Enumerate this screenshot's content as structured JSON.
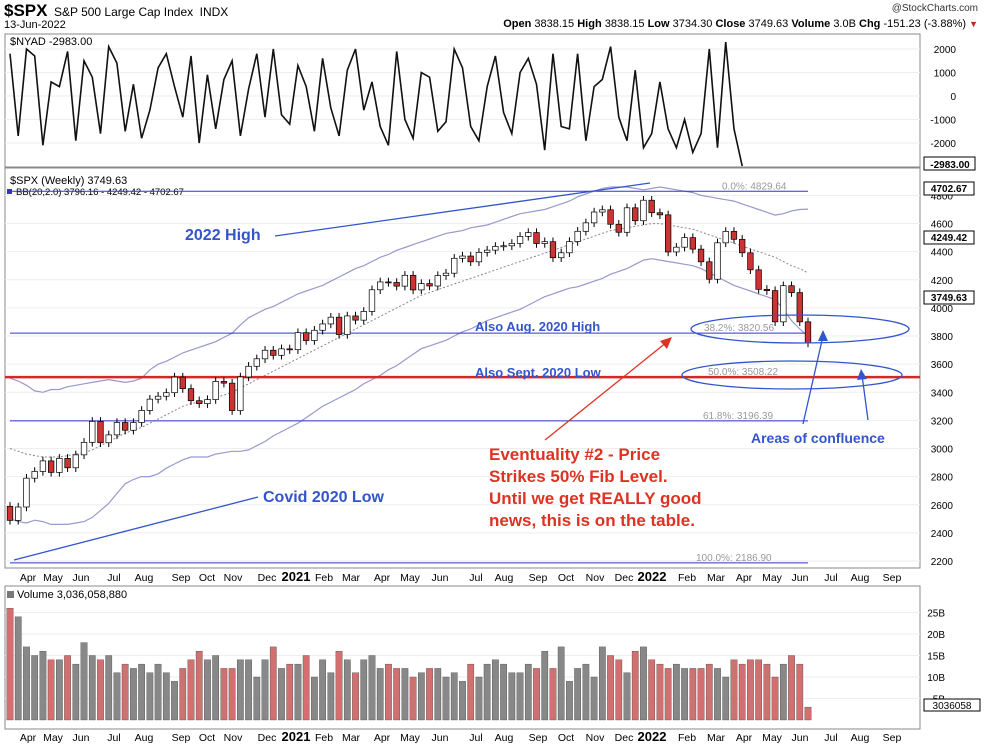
{
  "header": {
    "symbol": "$SPX",
    "name": "S&P 500 Large Cap Index",
    "exchange": "INDX",
    "date": "13-Jun-2022",
    "watermark": "@StockCharts.com",
    "quote": {
      "open_label": "Open",
      "open": "3838.15",
      "high_label": "High",
      "high": "3838.15",
      "low_label": "Low",
      "low": "3734.30",
      "close_label": "Close",
      "close": "3749.63",
      "volume_label": "Volume",
      "volume": "3.0B",
      "chg_label": "Chg",
      "chg": "-151.23 (-3.88%)"
    }
  },
  "colors": {
    "up": "#ffffff",
    "down": "#cc3333",
    "candle_outline": "#000000",
    "bb": "#9999cc",
    "sma": "#888888",
    "fib": "#3333cc",
    "red_line": "#d62728",
    "annotation_blue": "#3355cc",
    "annotation_red": "#dd3322",
    "vol_up": "#888888",
    "vol_down": "#d07070"
  },
  "chart_data": [
    {
      "type": "line",
      "panel": "indicator",
      "legend": "$NYAD -2983.00",
      "last_value_label": "-2983.00",
      "y_ticks": [
        2000,
        1000,
        0,
        -1000,
        -2000
      ],
      "ylim": [
        -3000,
        2500
      ],
      "values": [
        1800,
        -1700,
        2000,
        1700,
        -2100,
        600,
        400,
        1900,
        -1900,
        1500,
        800,
        -1600,
        2100,
        1400,
        -1500,
        500,
        -1800,
        -600,
        1200,
        1800,
        400,
        -900,
        1700,
        -2000,
        900,
        -1400,
        700,
        1500,
        -1700,
        300,
        1800,
        -900,
        2000,
        -800,
        -1200,
        1300,
        400,
        -1500,
        1600,
        -500,
        -1700,
        1100,
        2000,
        -600,
        600,
        -1300,
        -2100,
        1900,
        -1000,
        -1800,
        1000,
        800,
        -1500,
        -1100,
        2000,
        1200,
        -1300,
        -1900,
        400,
        1700,
        -700,
        -1600,
        1000,
        1600,
        500,
        -2300,
        1800,
        -1300,
        -1400,
        1800,
        -1900,
        400,
        700,
        2100,
        -900,
        -1900,
        1100,
        -2200,
        -1600,
        600,
        -1400,
        -2200,
        -1000,
        -2400,
        -1600,
        2000,
        -2200,
        2300,
        -1400,
        -2983
      ]
    },
    {
      "type": "candlestick",
      "panel": "price",
      "legend": "$SPX (Weekly) 3749.63",
      "legend_bb": "BB(20,2.0) 3796.16 - 4249.42 - 4702.67",
      "price_labels": [
        "4702.67",
        "4249.42",
        "3749.63"
      ],
      "y_ticks": [
        4800,
        4600,
        4400,
        4200,
        4000,
        3800,
        3600,
        3400,
        3200,
        3000,
        2800,
        2600,
        2400,
        2200
      ],
      "ylim": [
        2160,
        4870
      ],
      "fib_levels": [
        {
          "label": "0.0%: 4829.64",
          "value": 4829.64
        },
        {
          "label": "38.2%: 3820.56",
          "value": 3820.56
        },
        {
          "label": "50.0%: 3508.22",
          "value": 3508.22
        },
        {
          "label": "61.8%: 3196.39",
          "value": 3196.39
        },
        {
          "label": "100.0%: 2186.90",
          "value": 2186.9
        }
      ],
      "close": [
        2489,
        2584,
        2789,
        2837,
        2912,
        2830,
        2930,
        2863,
        2955,
        3044,
        3193,
        3041,
        3097,
        3185,
        3130,
        3185,
        3271,
        3351,
        3372,
        3397,
        3508,
        3426,
        3340,
        3319,
        3348,
        3477,
        3465,
        3270,
        3509,
        3585,
        3638,
        3699,
        3663,
        3709,
        3703,
        3824,
        3768,
        3841,
        3886,
        3934,
        3811,
        3943,
        3913,
        3975,
        4129,
        4185,
        4181,
        4155,
        4232,
        4128,
        4173,
        4156,
        4230,
        4247,
        4353,
        4369,
        4328,
        4395,
        4411,
        4437,
        4442,
        4459,
        4509,
        4536,
        4458,
        4471,
        4357,
        4392,
        4472,
        4545,
        4605,
        4682,
        4698,
        4595,
        4538,
        4712,
        4620,
        4766,
        4677,
        4662,
        4398,
        4432,
        4500,
        4418,
        4328,
        4204,
        4463,
        4544,
        4488,
        4392,
        4271,
        4132,
        4123,
        3901,
        4158,
        4109,
        3901,
        3750
      ],
      "bb_upper": [
        3500,
        3480,
        3450,
        3410,
        3400,
        3420,
        3420,
        3440,
        3450,
        3460,
        3470,
        3480,
        3490,
        3480,
        3470,
        3480,
        3500,
        3560,
        3600,
        3620,
        3650,
        3680,
        3700,
        3720,
        3740,
        3760,
        3790,
        3820,
        3880,
        3930,
        3960,
        3990,
        4010,
        4040,
        4070,
        4100,
        4120,
        4140,
        4160,
        4190,
        4220,
        4250,
        4280,
        4300,
        4330,
        4360,
        4380,
        4410,
        4430,
        4450,
        4470,
        4490,
        4510,
        4530,
        4540,
        4550,
        4570,
        4580,
        4590,
        4610,
        4630,
        4650,
        4670,
        4680,
        4690,
        4700,
        4720,
        4740,
        4760,
        4790,
        4810,
        4830,
        4850,
        4860,
        4860,
        4860,
        4850,
        4840,
        4850,
        4860,
        4850,
        4840,
        4830,
        4820,
        4800,
        4790,
        4780,
        4770,
        4760,
        4740,
        4720,
        4700,
        4680,
        4660,
        4670,
        4690,
        4700,
        4703
      ],
      "bb_mid": [
        3000,
        2980,
        2960,
        2950,
        2940,
        2940,
        2940,
        2950,
        2960,
        2970,
        2990,
        3020,
        3050,
        3080,
        3110,
        3130,
        3150,
        3180,
        3210,
        3240,
        3270,
        3300,
        3320,
        3330,
        3340,
        3360,
        3380,
        3400,
        3430,
        3460,
        3490,
        3520,
        3550,
        3580,
        3610,
        3640,
        3670,
        3700,
        3730,
        3760,
        3790,
        3820,
        3850,
        3880,
        3910,
        3940,
        3970,
        4000,
        4030,
        4060,
        4090,
        4110,
        4130,
        4150,
        4170,
        4190,
        4210,
        4230,
        4250,
        4270,
        4290,
        4310,
        4330,
        4350,
        4370,
        4390,
        4410,
        4430,
        4450,
        4470,
        4490,
        4510,
        4530,
        4550,
        4560,
        4570,
        4580,
        4590,
        4600,
        4600,
        4590,
        4580,
        4570,
        4560,
        4540,
        4520,
        4500,
        4480,
        4460,
        4440,
        4420,
        4400,
        4380,
        4360,
        4330,
        4300,
        4280,
        4249
      ],
      "bb_lower": [
        2500,
        2480,
        2470,
        2490,
        2480,
        2460,
        2460,
        2460,
        2470,
        2480,
        2510,
        2560,
        2610,
        2680,
        2750,
        2780,
        2800,
        2800,
        2820,
        2860,
        2890,
        2920,
        2940,
        2940,
        2940,
        2960,
        2970,
        2980,
        2980,
        2990,
        3020,
        3050,
        3090,
        3120,
        3150,
        3180,
        3220,
        3260,
        3300,
        3330,
        3360,
        3390,
        3420,
        3460,
        3490,
        3520,
        3560,
        3590,
        3630,
        3670,
        3710,
        3730,
        3750,
        3770,
        3800,
        3830,
        3850,
        3880,
        3910,
        3930,
        3950,
        3970,
        3990,
        4020,
        4050,
        4080,
        4100,
        4120,
        4140,
        4150,
        4170,
        4190,
        4210,
        4240,
        4260,
        4280,
        4310,
        4340,
        4350,
        4340,
        4330,
        4320,
        4310,
        4300,
        4280,
        4250,
        4220,
        4190,
        4160,
        4140,
        4120,
        4100,
        4080,
        4060,
        3990,
        3910,
        3850,
        3796
      ]
    },
    {
      "type": "bar",
      "panel": "volume",
      "legend": "Volume 3,036,058,880",
      "last_value_label": "3036058",
      "y_ticks": [
        "25B",
        "20B",
        "15B",
        "10B",
        "5B"
      ],
      "ylim": [
        0,
        25
      ],
      "values": [
        26,
        24,
        17,
        15,
        16,
        14,
        14,
        15,
        13,
        18,
        15,
        14,
        15,
        11,
        13,
        12,
        13,
        11,
        13,
        11,
        9,
        12,
        14,
        16,
        14,
        15,
        12,
        12,
        14,
        14,
        10,
        14,
        17,
        12,
        13,
        13,
        15,
        10,
        14,
        11,
        16,
        14,
        11,
        14,
        15,
        12,
        13,
        12,
        12,
        10,
        11,
        12,
        12,
        10,
        11,
        9,
        13,
        10,
        13,
        14,
        13,
        11,
        11,
        13,
        12,
        16,
        12,
        17,
        9,
        12,
        13,
        10,
        17,
        15,
        14,
        11,
        16,
        17,
        14,
        13,
        12,
        13,
        12,
        12,
        12,
        13,
        12,
        10,
        14,
        13,
        14,
        14,
        13,
        10,
        13,
        15,
        13,
        3.0
      ]
    },
    {
      "type": "table",
      "panel": "x_axis",
      "x_labels": [
        "Apr",
        "May",
        "Jun",
        "Jul",
        "Aug",
        "Sep",
        "Oct",
        "Nov",
        "Dec",
        "2021",
        "Feb",
        "Mar",
        "Apr",
        "May",
        "Jun",
        "Jul",
        "Aug",
        "Sep",
        "Oct",
        "Nov",
        "Dec",
        "2022",
        "Feb",
        "Mar",
        "Apr",
        "May",
        "Jun",
        "Jul",
        "Aug",
        "Sep"
      ]
    }
  ],
  "annotations": {
    "high_2022": "2022 High",
    "aug_2020": "Also Aug. 2020 High",
    "sept_2020": "Also Sept. 2020 Low",
    "covid_low": "Covid 2020 Low",
    "confluence": "Areas of confluence",
    "eventuality": [
      "Eventuality #2 - Price",
      "Strikes 50% Fib Level.",
      "Until we get REALLY good",
      "news, this is on the table."
    ]
  }
}
